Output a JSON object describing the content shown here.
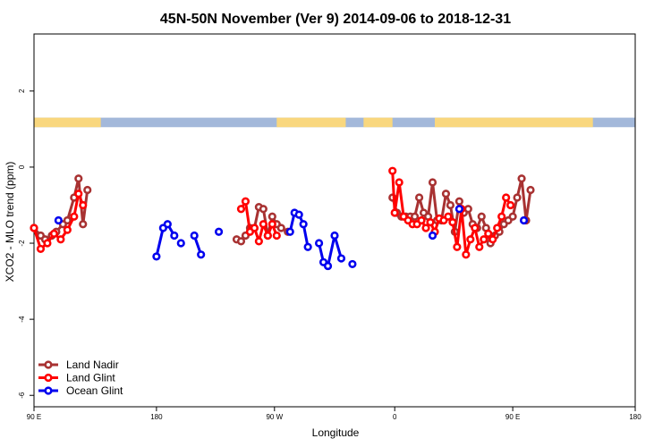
{
  "chart_data": {
    "type": "line",
    "title": "45N-50N November (Ver 9)   2014-09-06 to 2018-12-31",
    "xlabel": "Longitude",
    "ylabel": "XCO2 - MLO trend (ppm)",
    "xlim": [
      -90,
      180
    ],
    "ylim": [
      -6.3,
      3.5
    ],
    "x_ticks": [
      {
        "value": -90,
        "label": "90 E"
      },
      {
        "value": -35,
        "label": "180"
      },
      {
        "value": 18,
        "label": "90 W"
      },
      {
        "value": 72,
        "label": "0"
      },
      {
        "value": 125,
        "label": "90 E"
      },
      {
        "value": 180,
        "label": "180"
      }
    ],
    "y_ticks": [
      {
        "value": 2,
        "label": "2"
      },
      {
        "value": 0,
        "label": "0"
      },
      {
        "value": -2,
        "label": "-2"
      },
      {
        "value": -4,
        "label": "-4"
      },
      {
        "value": -6,
        "label": "-6"
      }
    ],
    "land_ocean_band": {
      "ymin": 1.05,
      "ymax": 1.3,
      "land_color": "#f9d77e",
      "ocean_color": "#a3b8da",
      "land_ranges": [
        [
          -90,
          -60
        ],
        [
          19,
          50
        ],
        [
          58,
          71
        ],
        [
          90,
          161
        ]
      ]
    },
    "legend": {
      "position": "bottom-left",
      "entries": [
        {
          "name": "Land Nadir",
          "color": "#a83232"
        },
        {
          "name": "Land Glint",
          "color": "#ff0000"
        },
        {
          "name": "Ocean Glint",
          "color": "#0000ee"
        }
      ]
    },
    "series": [
      {
        "name": "Land Nadir",
        "color": "#a83232",
        "segments": [
          [
            [
              -90,
              -1.6
            ],
            [
              -87,
              -1.8
            ],
            [
              -85,
              -1.9
            ],
            [
              -82,
              -1.8
            ],
            [
              -80,
              -1.7
            ],
            [
              -77,
              -1.5
            ],
            [
              -75,
              -1.4
            ],
            [
              -72,
              -0.8
            ],
            [
              -70,
              -0.3
            ],
            [
              -68,
              -1.5
            ],
            [
              -66,
              -0.6
            ]
          ],
          [
            [
              1,
              -1.9
            ],
            [
              3,
              -1.95
            ],
            [
              5,
              -1.8
            ],
            [
              7,
              -1.6
            ],
            [
              9,
              -1.6
            ],
            [
              11,
              -1.05
            ],
            [
              13,
              -1.1
            ],
            [
              15,
              -1.8
            ],
            [
              17,
              -1.3
            ],
            [
              19,
              -1.5
            ],
            [
              21,
              -1.6
            ],
            [
              24,
              -1.7
            ]
          ],
          [
            [
              71,
              -0.8
            ],
            [
              73,
              -1.2
            ],
            [
              75,
              -1.3
            ],
            [
              77,
              -1.3
            ],
            [
              79,
              -1.3
            ],
            [
              81,
              -1.3
            ],
            [
              83,
              -0.8
            ],
            [
              85,
              -1.2
            ],
            [
              87,
              -1.3
            ],
            [
              89,
              -0.4
            ],
            [
              91,
              -1.4
            ],
            [
              93,
              -1.4
            ],
            [
              95,
              -0.7
            ],
            [
              97,
              -1.0
            ],
            [
              99,
              -1.7
            ],
            [
              101,
              -0.9
            ],
            [
              103,
              -1.2
            ],
            [
              105,
              -1.1
            ],
            [
              107,
              -1.5
            ],
            [
              109,
              -1.6
            ],
            [
              111,
              -1.3
            ],
            [
              113,
              -1.6
            ],
            [
              115,
              -2.0
            ],
            [
              117,
              -1.8
            ],
            [
              119,
              -1.7
            ],
            [
              121,
              -1.5
            ],
            [
              123,
              -1.4
            ],
            [
              125,
              -1.3
            ],
            [
              127,
              -0.8
            ],
            [
              129,
              -0.3
            ],
            [
              131,
              -1.4
            ],
            [
              133,
              -0.6
            ]
          ]
        ]
      },
      {
        "name": "Land Glint",
        "color": "#ff0000",
        "segments": [
          [
            [
              -90,
              -1.6
            ],
            [
              -87,
              -2.15
            ],
            [
              -84,
              -2.0
            ],
            [
              -81,
              -1.75
            ],
            [
              -78,
              -1.9
            ],
            [
              -75,
              -1.65
            ],
            [
              -72,
              -1.3
            ],
            [
              -70,
              -0.7
            ],
            [
              -68,
              -1.0
            ]
          ],
          [
            [
              3,
              -1.1
            ],
            [
              5,
              -0.9
            ],
            [
              7,
              -1.7
            ],
            [
              9,
              -1.6
            ],
            [
              11,
              -1.95
            ],
            [
              13,
              -1.5
            ],
            [
              15,
              -1.8
            ],
            [
              17,
              -1.5
            ],
            [
              19,
              -1.8
            ]
          ],
          [
            [
              71,
              -0.1
            ],
            [
              72,
              -1.2
            ],
            [
              74,
              -0.4
            ],
            [
              76,
              -1.3
            ],
            [
              78,
              -1.4
            ],
            [
              80,
              -1.5
            ],
            [
              82,
              -1.5
            ],
            [
              84,
              -1.4
            ],
            [
              86,
              -1.6
            ],
            [
              88,
              -1.45
            ],
            [
              90,
              -1.7
            ],
            [
              92,
              -1.35
            ],
            [
              94,
              -1.4
            ],
            [
              96,
              -1.3
            ],
            [
              98,
              -1.45
            ],
            [
              100,
              -2.1
            ],
            [
              102,
              -1.1
            ],
            [
              104,
              -2.3
            ],
            [
              106,
              -1.9
            ],
            [
              108,
              -1.6
            ],
            [
              110,
              -2.1
            ],
            [
              112,
              -1.9
            ],
            [
              114,
              -1.75
            ],
            [
              116,
              -1.9
            ],
            [
              118,
              -1.6
            ],
            [
              120,
              -1.3
            ],
            [
              122,
              -0.8
            ],
            [
              124,
              -1.0
            ]
          ]
        ]
      },
      {
        "name": "Ocean Glint",
        "color": "#0000ee",
        "segments": [
          [
            [
              -79,
              -1.4
            ]
          ],
          [
            [
              -35,
              -2.35
            ],
            [
              -32,
              -1.6
            ],
            [
              -30,
              -1.5
            ],
            [
              -27,
              -1.8
            ]
          ],
          [
            [
              -24,
              -2.0
            ]
          ],
          [
            [
              -18,
              -1.8
            ],
            [
              -15,
              -2.3
            ]
          ],
          [
            [
              -7,
              -1.7
            ]
          ],
          [
            [
              25,
              -1.7
            ],
            [
              27,
              -1.2
            ],
            [
              29,
              -1.25
            ],
            [
              31,
              -1.5
            ],
            [
              33,
              -2.1
            ]
          ],
          [
            [
              38,
              -2.0
            ],
            [
              40,
              -2.5
            ],
            [
              42,
              -2.6
            ],
            [
              45,
              -1.8
            ],
            [
              48,
              -2.4
            ]
          ],
          [
            [
              53,
              -2.55
            ]
          ],
          [
            [
              89,
              -1.8
            ]
          ],
          [
            [
              101,
              -1.1
            ]
          ],
          [
            [
              130,
              -1.4
            ]
          ]
        ]
      }
    ]
  }
}
